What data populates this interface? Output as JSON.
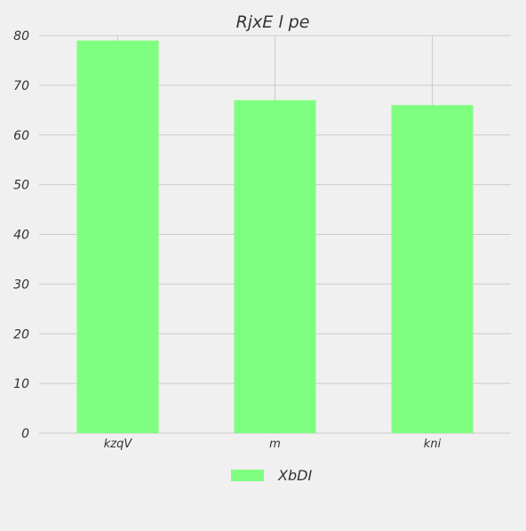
{
  "chart_data": {
    "type": "bar",
    "title": "RjxE l pe",
    "xlabel": "",
    "ylabel": "",
    "categories": [
      "kzqV",
      "m",
      "kni"
    ],
    "series": [
      {
        "name": "XbDI",
        "values": [
          79,
          67,
          66
        ]
      }
    ],
    "ylim": [
      0,
      80
    ],
    "yticks": [
      0,
      10,
      20,
      30,
      40,
      50,
      60,
      70,
      80
    ],
    "grid": true,
    "legend_position": "bottom-center",
    "colors": {
      "bar": "#7fff7f",
      "background": "#f0f0f0",
      "grid": "#cbcbcb",
      "text": "#333333"
    }
  }
}
